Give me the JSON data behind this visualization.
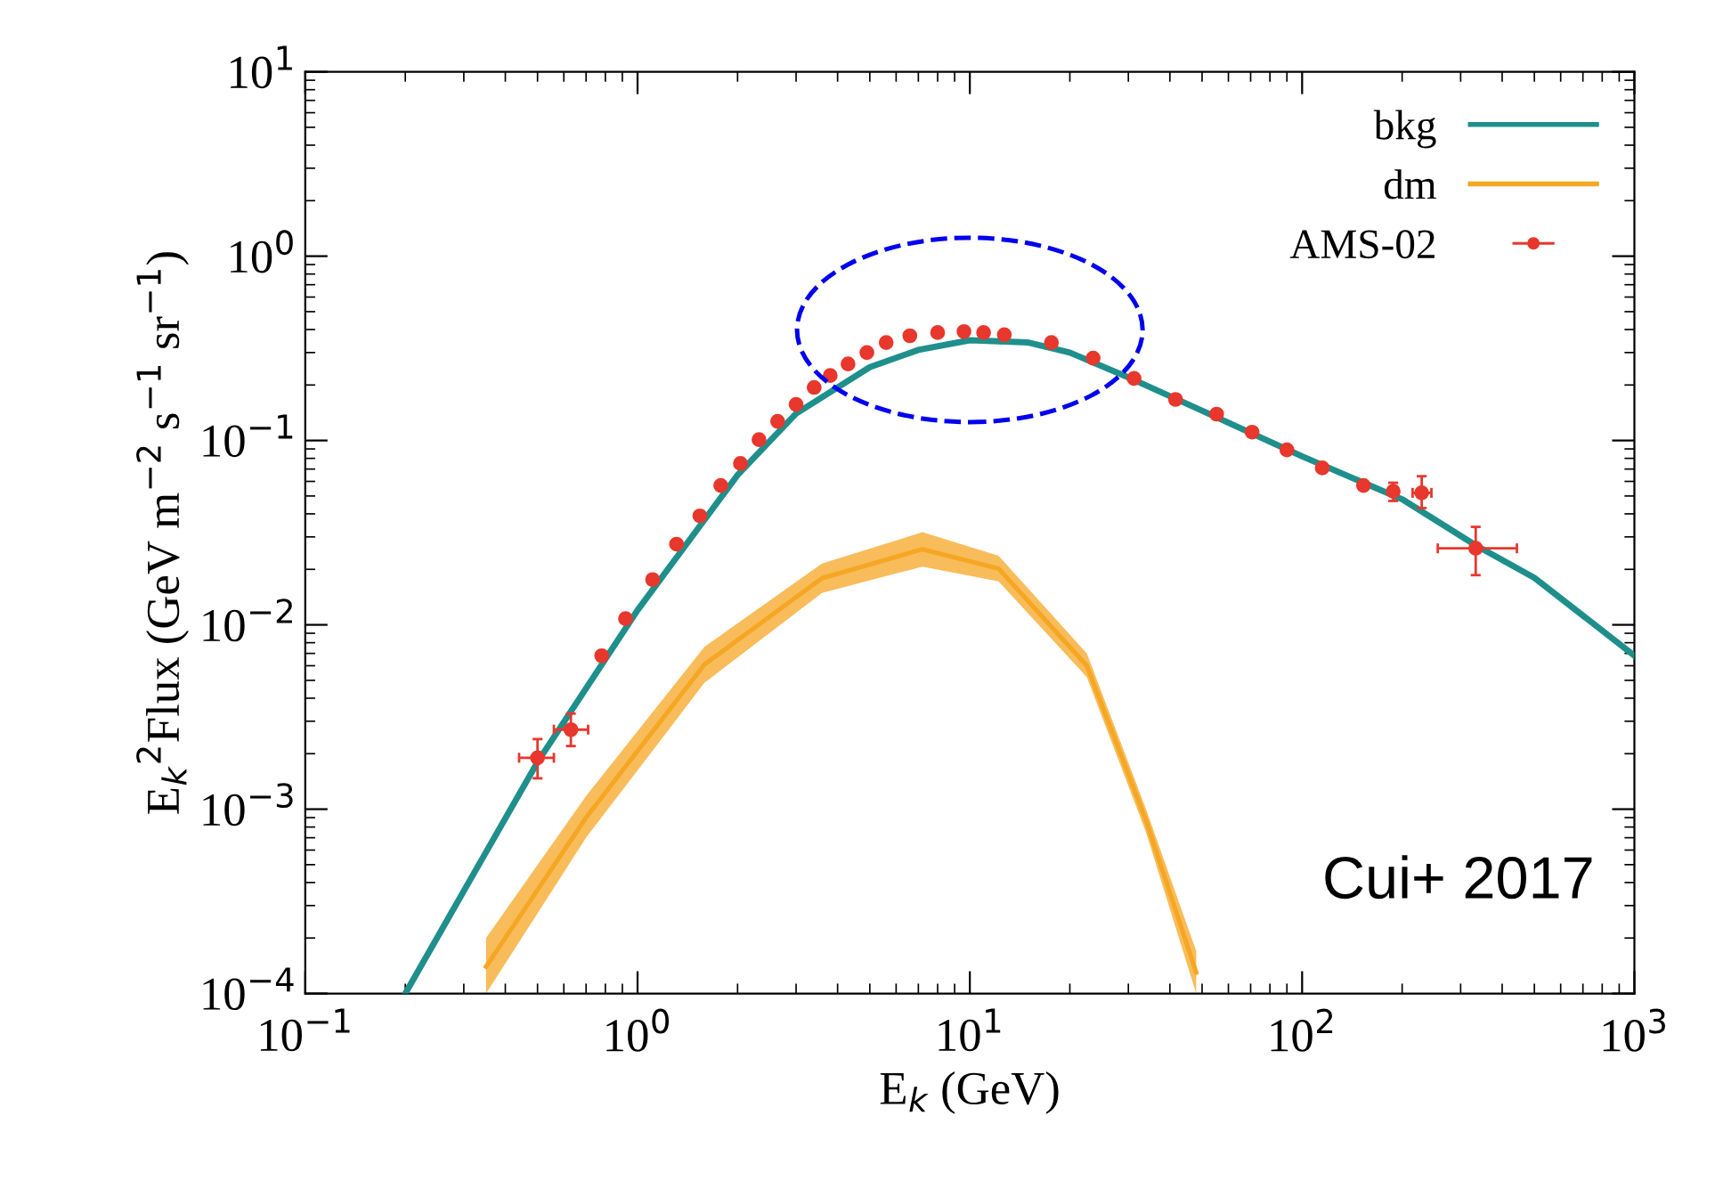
{
  "chart_data": {
    "type": "line",
    "xlabel": "E$_{k}$ (GeV)",
    "ylabel": "E$_{k}$$^{2}$Flux (GeV m$^{−2}$ s$^{−1}$ sr$^{−1}$)",
    "log": "xy",
    "xlim": [
      0.1,
      1000
    ],
    "ylim": [
      0.0001,
      10
    ],
    "xticks": [
      {
        "value": 0.1,
        "label": "10$^{−1}$"
      },
      {
        "value": 1,
        "label": "10$^{0}$"
      },
      {
        "value": 10,
        "label": "10$^{1}$"
      },
      {
        "value": 100,
        "label": "10$^{2}$"
      },
      {
        "value": 1000,
        "label": "10$^{3}$"
      }
    ],
    "yticks": [
      {
        "value": 0.0001,
        "label": "10$^{−4}$"
      },
      {
        "value": 0.001,
        "label": "10$^{−3}$"
      },
      {
        "value": 0.01,
        "label": "10$^{−2}$"
      },
      {
        "value": 0.1,
        "label": "10$^{−1}$"
      },
      {
        "value": 1,
        "label": "10$^{0}$"
      },
      {
        "value": 10,
        "label": "10$^{1}$"
      }
    ],
    "legend": "top right",
    "grid": false,
    "annotations": [
      "Cui+ 2017"
    ],
    "series": [
      {
        "name": "bkg",
        "color": "#1f8f8c",
        "x": [
          0.2,
          0.3,
          0.5,
          1,
          2,
          3,
          5,
          7,
          10,
          15,
          20,
          30,
          50,
          100,
          200,
          333,
          500,
          1000
        ],
        "values": [
          0.0001,
          0.00036,
          0.0018,
          0.012,
          0.065,
          0.14,
          0.25,
          0.31,
          0.35,
          0.34,
          0.3,
          0.22,
          0.145,
          0.082,
          0.048,
          0.027,
          0.018,
          0.0068
        ]
      },
      {
        "name": "dm",
        "type": "line",
        "color": "#f5a623",
        "x": [
          0.35,
          0.7,
          1.59,
          3.59,
          7.2,
          12.2,
          22.5,
          33.9,
          48
        ],
        "values": [
          0.00014,
          0.0009,
          0.0061,
          0.0179,
          0.0257,
          0.0202,
          0.006,
          0.00087,
          0.00013
        ],
        "lower": [
          0.0001,
          0.0007,
          0.00485,
          0.0149,
          0.0207,
          0.0172,
          0.0052,
          0.00075,
          0.0001
        ],
        "upper": [
          0.0002,
          0.00118,
          0.0076,
          0.0215,
          0.0318,
          0.0237,
          0.007,
          0.001,
          0.00017
        ]
      },
      {
        "name": "AMS-02",
        "type": "scatter",
        "marker": "circle",
        "color": "#e8372c",
        "x": [
          0.5,
          0.63,
          0.78,
          0.92,
          1.11,
          1.31,
          1.54,
          1.78,
          2.04,
          2.32,
          2.64,
          3.0,
          3.4,
          3.8,
          4.3,
          4.9,
          5.6,
          6.6,
          8,
          9.6,
          11,
          12.7,
          17.6,
          23.5,
          31.2,
          41.6,
          55.3,
          70.7,
          90,
          115,
          153,
          188,
          229,
          333
        ],
        "values": [
          0.0019,
          0.0027,
          0.0068,
          0.0108,
          0.0176,
          0.0274,
          0.039,
          0.057,
          0.075,
          0.101,
          0.127,
          0.157,
          0.194,
          0.225,
          0.26,
          0.3,
          0.34,
          0.37,
          0.385,
          0.39,
          0.385,
          0.375,
          0.34,
          0.28,
          0.217,
          0.167,
          0.139,
          0.111,
          0.089,
          0.071,
          0.057,
          0.053,
          0.052,
          0.026
        ],
        "errors": [
          [
            0.00147,
            0.0024
          ],
          [
            0.0022,
            0.0033
          ],
          null,
          null,
          null,
          null,
          null,
          null,
          null,
          null,
          null,
          null,
          null,
          null,
          null,
          null,
          null,
          null,
          null,
          null,
          null,
          null,
          null,
          null,
          null,
          null,
          null,
          null,
          null,
          null,
          null,
          [
            0.047,
            0.059
          ],
          [
            0.043,
            0.064
          ],
          [
            0.0186,
            0.034
          ]
        ],
        "xerrors": [
          [
            0.44,
            0.56
          ],
          [
            0.56,
            0.71
          ],
          null,
          null,
          null,
          null,
          null,
          null,
          null,
          null,
          null,
          null,
          null,
          null,
          null,
          null,
          null,
          null,
          null,
          null,
          null,
          null,
          null,
          null,
          null,
          null,
          null,
          null,
          null,
          null,
          null,
          null,
          [
            215,
            245
          ],
          [
            256,
            443
          ]
        ]
      }
    ]
  }
}
